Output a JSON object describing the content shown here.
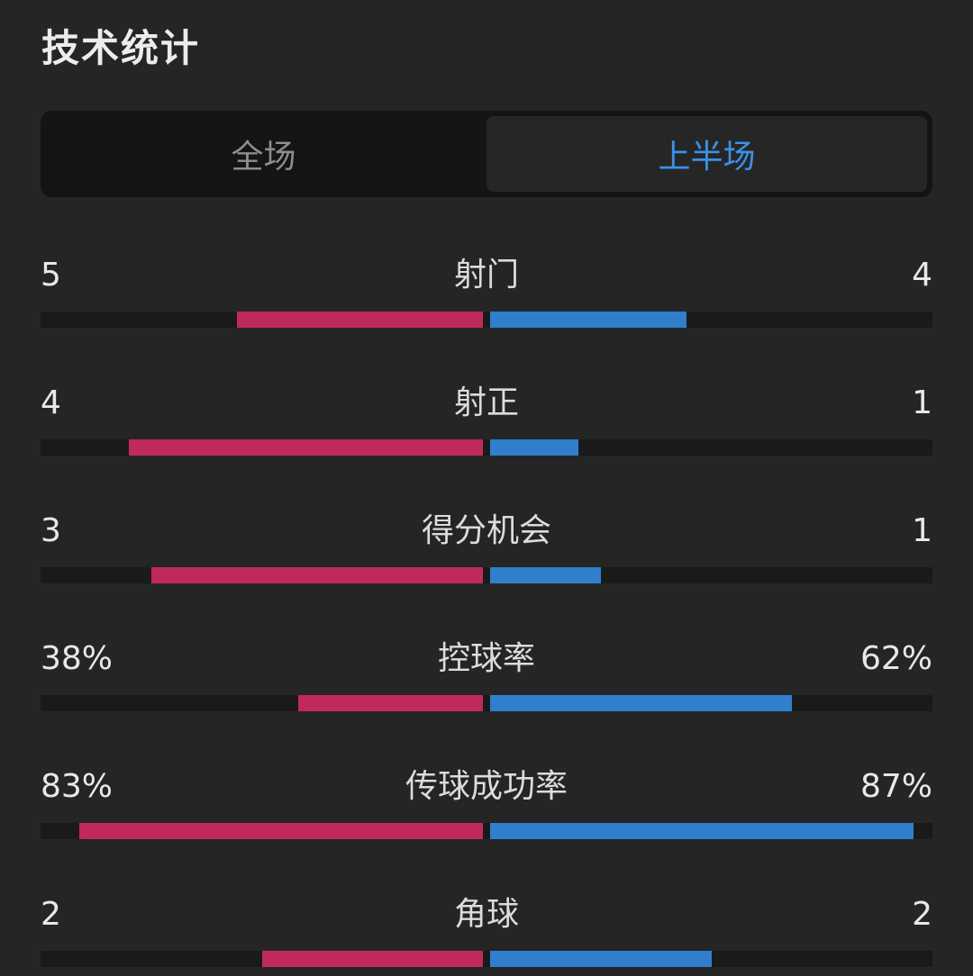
{
  "header": {
    "title": "技术统计"
  },
  "tabs": [
    {
      "label": "全场",
      "active": false
    },
    {
      "label": "上半场",
      "active": true
    }
  ],
  "colors": {
    "home": "#c0295c",
    "away": "#2f7fcc",
    "active_tab_text": "#3a92e8"
  },
  "stats": [
    {
      "label": "射门",
      "home": "5",
      "away": "4",
      "home_value": 5,
      "away_value": 4
    },
    {
      "label": "射正",
      "home": "4",
      "away": "1",
      "home_value": 4,
      "away_value": 1
    },
    {
      "label": "得分机会",
      "home": "3",
      "away": "1",
      "home_value": 3,
      "away_value": 1
    },
    {
      "label": "控球率",
      "home": "38%",
      "away": "62%",
      "home_value": 38,
      "away_value": 62
    },
    {
      "label": "传球成功率",
      "home": "83%",
      "away": "87%",
      "home_value": 83,
      "away_value": 87
    },
    {
      "label": "角球",
      "home": "2",
      "away": "2",
      "home_value": 2,
      "away_value": 2
    }
  ]
}
